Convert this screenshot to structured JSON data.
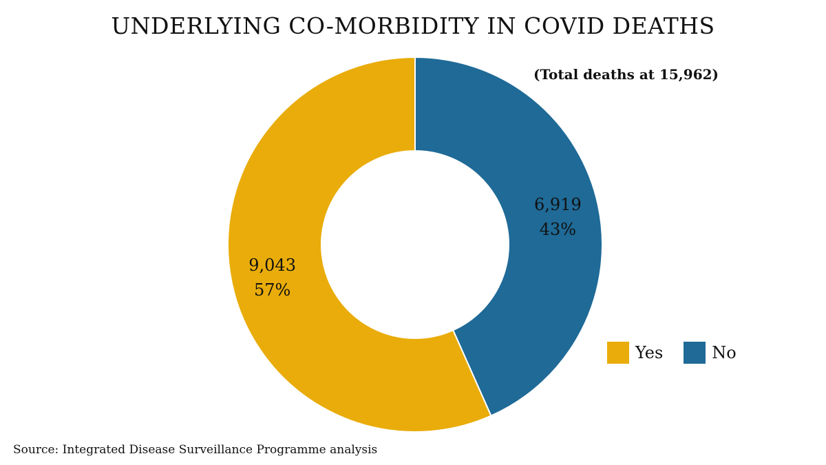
{
  "chart_data": {
    "type": "pie",
    "donut": true,
    "title": "UNDERLYING CO-MORBIDITY IN COVID DEATHS",
    "subtitle": "(Total deaths at 15,962)",
    "total": 15962,
    "slices": [
      {
        "name": "No",
        "value": 6919,
        "value_label": "6,919",
        "percent_label": "43%",
        "color": "#1f6a97"
      },
      {
        "name": "Yes",
        "value": 9043,
        "value_label": "9,043",
        "percent_label": "57%",
        "color": "#e9ac0a"
      }
    ],
    "start_angle_deg": 0,
    "direction": "clockwise",
    "legend": [
      {
        "label": "Yes",
        "color": "#e9ac0a"
      },
      {
        "label": "No",
        "color": "#1f6a97"
      }
    ],
    "legend_position": "bottom-right",
    "source": "Source: Integrated Disease Surveillance Programme analysis"
  }
}
